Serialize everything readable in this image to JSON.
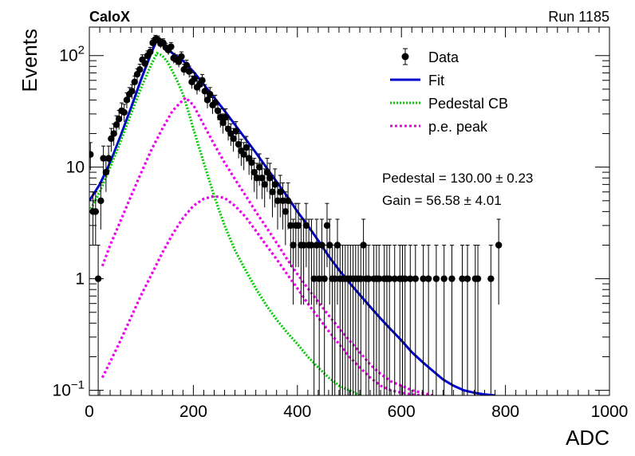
{
  "header": {
    "left_label": "CaloX",
    "right_label": "Run 1185"
  },
  "chart_data": {
    "type": "scatter",
    "title": "",
    "xlabel": "ADC",
    "ylabel": "Events",
    "xlim": [
      0,
      1000
    ],
    "ylim": [
      0.09,
      180
    ],
    "y_scale": "log",
    "grid": false,
    "legend_position": "top-right",
    "x_ticks": [
      "0",
      "200",
      "400",
      "600",
      "800",
      "1000"
    ],
    "y_ticks": [
      {
        "value": 0.1,
        "base": "10",
        "exp": "−1"
      },
      {
        "value": 1,
        "text": "1"
      },
      {
        "value": 10,
        "text": "10"
      },
      {
        "value": 100,
        "base": "10",
        "exp": "2"
      }
    ],
    "legend": [
      {
        "label": "Data",
        "style": "marker",
        "color": "#000000"
      },
      {
        "label": "Fit",
        "style": "solid",
        "color": "#0000cc"
      },
      {
        "label": "Pedestal CB",
        "style": "dotted",
        "color": "#00cc00"
      },
      {
        "label": "p.e. peak",
        "style": "dashed",
        "color": "#ee00ee"
      }
    ],
    "annotations": [
      "Pedestal = 130.00 ± 0.23",
      "Gain = 56.58 ± 4.01"
    ],
    "data": {
      "name": "Data",
      "bin_width": 5,
      "points": [
        [
          2,
          13
        ],
        [
          7,
          4
        ],
        [
          12,
          4
        ],
        [
          17,
          1
        ],
        [
          22,
          5
        ],
        [
          27,
          12
        ],
        [
          32,
          9
        ],
        [
          37,
          12
        ],
        [
          42,
          18
        ],
        [
          47,
          20
        ],
        [
          52,
          24
        ],
        [
          57,
          27
        ],
        [
          62,
          32
        ],
        [
          67,
          31
        ],
        [
          72,
          40
        ],
        [
          77,
          45
        ],
        [
          82,
          48
        ],
        [
          87,
          58
        ],
        [
          92,
          68
        ],
        [
          97,
          75
        ],
        [
          102,
          92
        ],
        [
          107,
          85
        ],
        [
          112,
          100
        ],
        [
          117,
          108
        ],
        [
          122,
          130
        ],
        [
          127,
          140
        ],
        [
          132,
          138
        ],
        [
          137,
          128
        ],
        [
          142,
          130
        ],
        [
          147,
          118
        ],
        [
          152,
          112
        ],
        [
          157,
          120
        ],
        [
          162,
          95
        ],
        [
          167,
          92
        ],
        [
          172,
          88
        ],
        [
          177,
          98
        ],
        [
          182,
          75
        ],
        [
          187,
          82
        ],
        [
          192,
          72
        ],
        [
          197,
          58
        ],
        [
          202,
          62
        ],
        [
          207,
          52
        ],
        [
          212,
          55
        ],
        [
          217,
          60
        ],
        [
          222,
          48
        ],
        [
          227,
          40
        ],
        [
          232,
          45
        ],
        [
          237,
          36
        ],
        [
          242,
          38
        ],
        [
          247,
          32
        ],
        [
          252,
          28
        ],
        [
          257,
          25
        ],
        [
          262,
          28
        ],
        [
          267,
          22
        ],
        [
          272,
          20
        ],
        [
          277,
          18
        ],
        [
          282,
          21
        ],
        [
          287,
          16
        ],
        [
          292,
          14
        ],
        [
          297,
          13
        ],
        [
          302,
          15
        ],
        [
          307,
          12
        ],
        [
          312,
          11
        ],
        [
          317,
          9
        ],
        [
          322,
          8
        ],
        [
          327,
          10
        ],
        [
          332,
          8
        ],
        [
          337,
          7
        ],
        [
          342,
          9
        ],
        [
          347,
          8
        ],
        [
          352,
          6
        ],
        [
          357,
          7
        ],
        [
          362,
          5
        ],
        [
          367,
          6
        ],
        [
          372,
          5
        ],
        [
          377,
          4
        ],
        [
          382,
          5
        ],
        [
          387,
          3
        ],
        [
          392,
          2
        ],
        [
          397,
          3
        ],
        [
          402,
          3
        ],
        [
          407,
          2
        ],
        [
          412,
          2
        ],
        [
          417,
          3
        ],
        [
          422,
          2
        ],
        [
          427,
          2
        ],
        [
          432,
          1
        ],
        [
          437,
          2
        ],
        [
          442,
          1
        ],
        [
          447,
          2
        ],
        [
          452,
          1
        ],
        [
          457,
          3
        ],
        [
          462,
          2
        ],
        [
          467,
          1
        ],
        [
          472,
          1
        ],
        [
          477,
          2
        ],
        [
          482,
          1
        ],
        [
          487,
          1
        ],
        [
          492,
          1
        ],
        [
          497,
          1
        ],
        [
          502,
          1
        ],
        [
          507,
          1
        ],
        [
          512,
          1
        ],
        [
          517,
          1
        ],
        [
          522,
          1
        ],
        [
          527,
          2
        ],
        [
          532,
          1
        ],
        [
          537,
          1
        ],
        [
          547,
          1
        ],
        [
          552,
          1
        ],
        [
          557,
          1
        ],
        [
          567,
          1
        ],
        [
          572,
          1
        ],
        [
          577,
          1
        ],
        [
          587,
          1
        ],
        [
          597,
          1
        ],
        [
          602,
          1
        ],
        [
          607,
          1
        ],
        [
          617,
          1
        ],
        [
          627,
          1
        ],
        [
          642,
          1
        ],
        [
          652,
          1
        ],
        [
          667,
          1
        ],
        [
          682,
          1
        ],
        [
          697,
          1
        ],
        [
          717,
          1
        ],
        [
          727,
          1
        ],
        [
          742,
          1
        ],
        [
          787,
          2
        ],
        [
          747,
          1
        ],
        [
          772,
          1
        ]
      ]
    },
    "series": [
      {
        "name": "Fit",
        "x": [
          0,
          20,
          40,
          60,
          80,
          100,
          120,
          130,
          140,
          160,
          180,
          200,
          220,
          240,
          260,
          280,
          300,
          320,
          340,
          360,
          380,
          400,
          420,
          440,
          460,
          480,
          500,
          520,
          540,
          560,
          580,
          600,
          620,
          640,
          660,
          680,
          700,
          720,
          740,
          760,
          780
        ],
        "y": [
          5,
          7,
          11,
          19,
          34,
          62,
          108,
          138,
          128,
          105,
          90,
          72,
          55,
          42,
          32,
          24,
          18,
          13.5,
          10,
          7.4,
          5.5,
          4,
          3,
          2.2,
          1.6,
          1.2,
          0.92,
          0.72,
          0.56,
          0.44,
          0.35,
          0.28,
          0.22,
          0.18,
          0.15,
          0.125,
          0.11,
          0.1,
          0.095,
          0.092,
          0.09
        ]
      },
      {
        "name": "Pedestal CB",
        "x": [
          0,
          20,
          40,
          60,
          80,
          100,
          120,
          130,
          140,
          150,
          160,
          170,
          180,
          190,
          200,
          220,
          240,
          260,
          280,
          300,
          320,
          340,
          360,
          380,
          400,
          420,
          440,
          460,
          480,
          500,
          520
        ],
        "y": [
          4,
          6,
          10,
          17,
          30,
          52,
          85,
          105,
          100,
          88,
          72,
          58,
          45,
          32,
          22,
          11,
          5.5,
          3,
          1.8,
          1.2,
          0.82,
          0.58,
          0.43,
          0.33,
          0.26,
          0.2,
          0.16,
          0.13,
          0.11,
          0.1,
          0.09
        ]
      },
      {
        "name": "p.e. peak",
        "x": [
          25,
          40,
          60,
          80,
          100,
          120,
          140,
          160,
          180,
          185,
          200,
          220,
          240,
          260,
          280,
          300,
          320,
          340,
          360,
          380,
          400,
          420,
          440,
          460,
          480,
          500,
          520,
          540,
          560,
          580,
          600,
          620,
          640,
          660
        ],
        "y": [
          1.3,
          2,
          3.3,
          5.5,
          9,
          14.5,
          22,
          32,
          40,
          42,
          36,
          24,
          16,
          11,
          7.8,
          5.6,
          4,
          2.9,
          2.1,
          1.5,
          1.1,
          0.82,
          0.62,
          0.47,
          0.36,
          0.28,
          0.22,
          0.17,
          0.14,
          0.12,
          0.11,
          0.1,
          0.095,
          0.09
        ]
      },
      {
        "name": "p.e. peak",
        "x": [
          25,
          40,
          60,
          80,
          100,
          120,
          140,
          160,
          180,
          200,
          220,
          240,
          260,
          280,
          300,
          320,
          340,
          360,
          380,
          400,
          420,
          440,
          460,
          480,
          500,
          520,
          540,
          560,
          580,
          600,
          620,
          640,
          660,
          680,
          700,
          720,
          740
        ],
        "y": [
          0.13,
          0.18,
          0.28,
          0.45,
          0.72,
          1.1,
          1.7,
          2.5,
          3.5,
          4.5,
          5.2,
          5.5,
          5.3,
          4.5,
          3.6,
          2.7,
          2,
          1.5,
          1.1,
          0.82,
          0.6,
          0.45,
          0.34,
          0.26,
          0.2,
          0.16,
          0.13,
          0.11,
          0.1,
          0.095,
          0.092,
          0.09,
          0.088,
          0.087,
          0.086,
          0.085,
          0.084
        ]
      }
    ]
  }
}
